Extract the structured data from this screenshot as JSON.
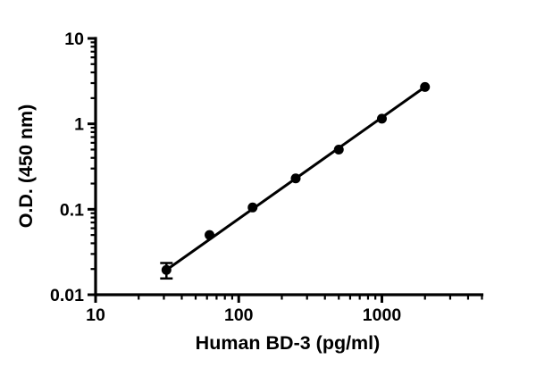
{
  "chart_data": {
    "type": "scatter",
    "title": "",
    "xlabel": "Human BD-3 (pg/ml)",
    "ylabel": "O.D. (450 nm)",
    "xscale": "log",
    "yscale": "log",
    "xlim": [
      10,
      5000
    ],
    "ylim": [
      0.01,
      10
    ],
    "grid": false,
    "legend": false,
    "color": "#000000",
    "background": "#ffffff",
    "x_tick_labels": [
      {
        "value": 10,
        "label": "10"
      },
      {
        "value": 100,
        "label": "100"
      },
      {
        "value": 1000,
        "label": "1000"
      }
    ],
    "y_tick_labels": [
      {
        "value": 0.01,
        "label": "0.01"
      },
      {
        "value": 0.1,
        "label": "0.1"
      },
      {
        "value": 1,
        "label": "1"
      },
      {
        "value": 10,
        "label": "10"
      }
    ],
    "series": [
      {
        "name": "standard-curve",
        "marker": "filled-circle",
        "line": "straight-fit",
        "points": [
          {
            "x": 31.25,
            "y": 0.0195,
            "y_err": 0.004
          },
          {
            "x": 62.5,
            "y": 0.05
          },
          {
            "x": 125,
            "y": 0.105
          },
          {
            "x": 250,
            "y": 0.23
          },
          {
            "x": 500,
            "y": 0.5
          },
          {
            "x": 1000,
            "y": 1.15
          },
          {
            "x": 2000,
            "y": 2.7
          }
        ]
      }
    ]
  }
}
